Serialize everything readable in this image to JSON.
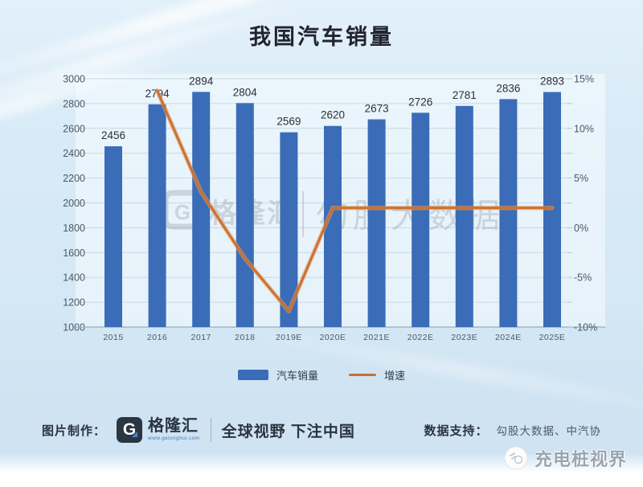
{
  "chart_data": {
    "type": "bar",
    "title": "我国汽车销量",
    "categories": [
      "2015",
      "2016",
      "2017",
      "2018",
      "2019E",
      "2020E",
      "2021E",
      "2022E",
      "2023E",
      "2024E",
      "2025E"
    ],
    "series": [
      {
        "name": "汽车销量",
        "type": "bar",
        "axis": "left",
        "color": "#3a6cb8",
        "values": [
          2456,
          2794,
          2894,
          2804,
          2569,
          2620,
          2673,
          2726,
          2781,
          2836,
          2893
        ]
      },
      {
        "name": "增速",
        "type": "line",
        "axis": "right",
        "color": "#c96f31",
        "values": [
          null,
          13.8,
          3.6,
          -3.1,
          -8.4,
          2.0,
          2.0,
          2.0,
          2.0,
          2.0,
          2.0
        ]
      }
    ],
    "left_axis": {
      "min": 1000,
      "max": 3000,
      "step": 200,
      "labels": [
        "3000",
        "2800",
        "2600",
        "2400",
        "2200",
        "2000",
        "1800",
        "1600",
        "1400",
        "1200",
        "1000"
      ]
    },
    "right_axis": {
      "min": -10,
      "max": 15,
      "step": 5,
      "minor_step": 2.5,
      "labels": [
        "15%",
        "10%",
        "5%",
        "0%",
        "-5%",
        "-10%"
      ]
    },
    "grid": "horizontal",
    "legend_position": "bottom"
  },
  "legend": {
    "items": [
      {
        "label": "汽车销量",
        "color": "#3a6cb8",
        "shape": "rect"
      },
      {
        "label": "增速",
        "color": "#c96f31",
        "shape": "line"
      }
    ]
  },
  "watermark": {
    "logo_letter": "G",
    "logo_text": "格隆汇",
    "big_text": "勾股大数据"
  },
  "footer": {
    "credit_label": "图片制作：",
    "logo_letter": "G",
    "logo_name": "格隆汇",
    "logo_site": "www.gelonghui.com",
    "slogan": "全球视野 下注中国",
    "support_label": "数据支持：",
    "support_value": "勾股大数据、中汽协"
  },
  "corner": {
    "text": "充电桩视界"
  }
}
